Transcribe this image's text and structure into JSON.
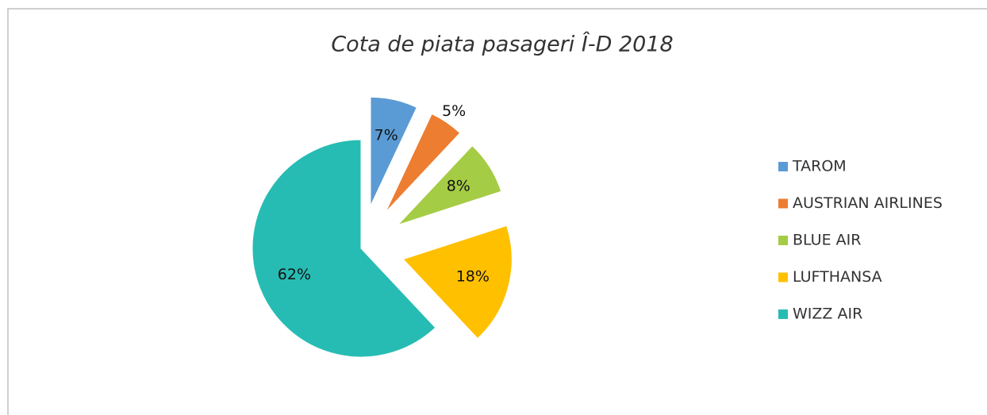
{
  "chart_data": {
    "type": "pie",
    "title": "Cota de piata pasageri Î-D 2018",
    "categories": [
      "TAROM",
      "AUSTRIAN AIRLINES",
      "BLUE AIR",
      "LUFTHANSA",
      "WIZZ AIR"
    ],
    "values": [
      7,
      5,
      8,
      18,
      62
    ],
    "value_labels": [
      "7%",
      "5%",
      "8%",
      "18%",
      "62%"
    ],
    "colors": [
      "#5b9bd5",
      "#ed7d31",
      "#a5cc45",
      "#ffc000",
      "#26bcb3"
    ],
    "legend": "right"
  }
}
